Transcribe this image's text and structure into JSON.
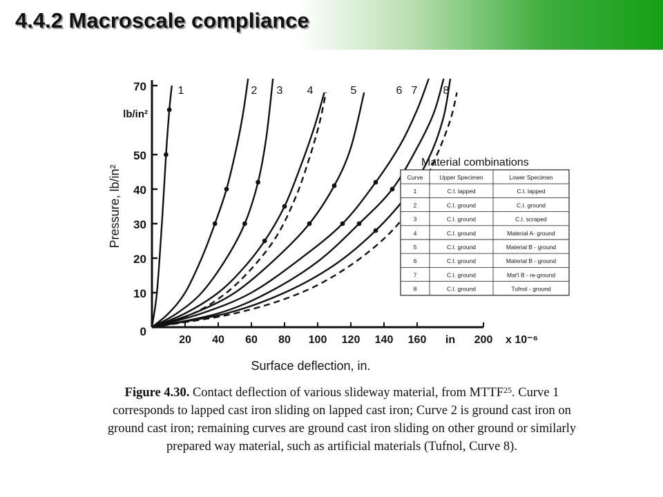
{
  "slide": {
    "title": "4.4.2 Macroscale compliance"
  },
  "caption": {
    "label": "Figure 4.30.",
    "text_start": "Contact deflection of various slideway material, from MTTF",
    "ref": "25",
    "text_end": ". Curve 1 corresponds to lapped cast iron sliding on lapped cast iron; Curve 2 is ground cast iron on ground cast iron; remaining curves are ground cast iron sliding on other ground or similarly prepared way material, such as artificial materials (Tufnol, Curve 8)."
  },
  "chart_data": {
    "type": "line",
    "xlabel": "Surface deflection, in.",
    "ylabel": "Pressure, lb/in²",
    "y_unit_label": "lb/in²",
    "x_unit_label": "in",
    "x_multiplier_label": "x 10⁻⁶",
    "xlim": [
      0,
      200
    ],
    "ylim": [
      0,
      70
    ],
    "x_ticks": [
      20,
      40,
      60,
      80,
      100,
      120,
      140,
      160,
      200
    ],
    "y_ticks": [
      10,
      20,
      30,
      40,
      50,
      70
    ],
    "origin_label": "0",
    "grid": false,
    "series": [
      {
        "name": "1",
        "dashed": false,
        "x": [
          0,
          3,
          6,
          8.5,
          10.5,
          12
        ],
        "y": [
          0,
          10,
          30,
          50,
          63,
          70
        ]
      },
      {
        "name": "2",
        "dashed": false,
        "x": [
          0,
          10,
          20,
          30,
          38,
          45,
          51,
          55,
          58
        ],
        "y": [
          0,
          4,
          10,
          20,
          30,
          40,
          52,
          62,
          72
        ]
      },
      {
        "name": "3",
        "dashed": false,
        "x": [
          0,
          15,
          30,
          45,
          56,
          64,
          69,
          73
        ],
        "y": [
          0,
          4,
          10,
          20,
          30,
          42,
          55,
          72
        ]
      },
      {
        "name": "4",
        "dashed": false,
        "x": [
          0,
          20,
          40,
          55,
          68,
          80,
          90,
          98,
          104
        ],
        "y": [
          0,
          4,
          10,
          17,
          25,
          35,
          47,
          58,
          68
        ]
      },
      {
        "name": "4",
        "dashed": true,
        "x": [
          0,
          25,
          45,
          62,
          76,
          87,
          95,
          101,
          105
        ],
        "y": [
          0,
          4,
          10,
          18,
          27,
          38,
          49,
          59,
          68
        ]
      },
      {
        "name": "5",
        "dashed": false,
        "x": [
          0,
          25,
          50,
          75,
          95,
          110,
          120,
          128
        ],
        "y": [
          0,
          4,
          10,
          20,
          30,
          41,
          52,
          68
        ]
      },
      {
        "name": "6",
        "dashed": false,
        "x": [
          0,
          30,
          60,
          90,
          115,
          135,
          150,
          160,
          167
        ],
        "y": [
          0,
          4,
          10,
          20,
          30,
          42,
          53,
          63,
          72
        ]
      },
      {
        "name": "7",
        "dashed": false,
        "x": [
          0,
          40,
          70,
          100,
          125,
          145,
          160,
          170,
          176
        ],
        "y": [
          0,
          4,
          10,
          19,
          30,
          40,
          52,
          62,
          72
        ]
      },
      {
        "name": "7",
        "dashed": false,
        "x": [
          0,
          45,
          80,
          110,
          135,
          155,
          168,
          176,
          180
        ],
        "y": [
          0,
          4,
          10,
          18,
          28,
          39,
          50,
          61,
          72
        ]
      },
      {
        "name": "8",
        "dashed": true,
        "x": [
          0,
          50,
          90,
          120,
          145,
          160,
          172,
          180,
          184
        ],
        "y": [
          0,
          4,
          10,
          18,
          28,
          38,
          50,
          60,
          68
        ]
      }
    ],
    "curve_labels": [
      "1",
      "2",
      "3",
      "4",
      "5",
      "6",
      "7",
      "8"
    ],
    "table": {
      "title": "Material combinations",
      "columns": [
        "Curve",
        "Upper Specimen",
        "Lower Specimen"
      ],
      "rows": [
        [
          "1",
          "C.I. lapped",
          "C.I. lapped"
        ],
        [
          "2",
          "C.I. ground",
          "C.I. ground"
        ],
        [
          "3",
          "C.I. ground",
          "C.I. scraped"
        ],
        [
          "4",
          "C.I. ground",
          "Material A- ground"
        ],
        [
          "5",
          "C.I. ground",
          "Material B - ground"
        ],
        [
          "6",
          "C.I. ground",
          "Material B - ground"
        ],
        [
          "7",
          "C.I. ground",
          "Mat'l B - re-ground"
        ],
        [
          "8",
          "C.I. ground",
          "Tufnol - ground"
        ]
      ]
    }
  }
}
